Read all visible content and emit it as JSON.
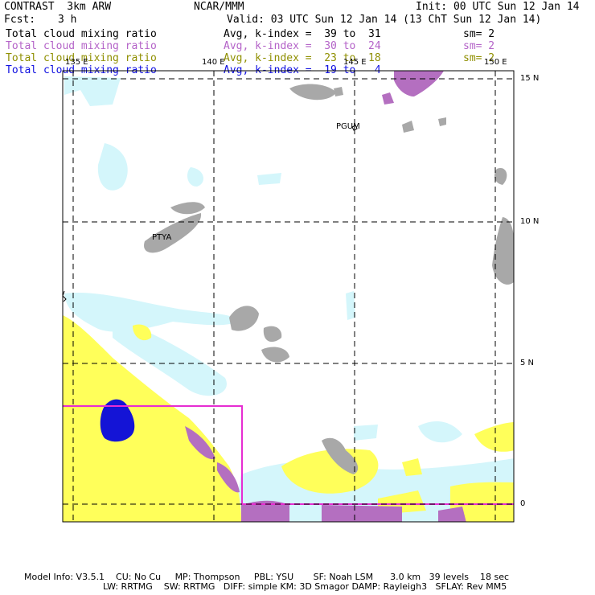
{
  "header": {
    "model_title": "CONTRAST  3km ARW",
    "org": "NCAR/MMM",
    "init": "Init: 00 UTC Sun 12 Jan 14",
    "fcst_label": "Fcst:",
    "fcst_value": "3 h",
    "valid": "Valid: 03 UTC Sun 12 Jan 14 (13 ChT Sun 12 Jan 14)"
  },
  "legend": [
    {
      "field": "Total cloud mixing ratio",
      "stat": "Avg, k-index =  39 to  31",
      "smooth": "sm= 2",
      "color": "#000000"
    },
    {
      "field": "Total cloud mixing ratio",
      "stat": "Avg, k-index =  30 to  24",
      "smooth": "sm= 2",
      "color": "#b463c8"
    },
    {
      "field": "Total cloud mixing ratio",
      "stat": "Avg, k-index =  23 to  18",
      "smooth": "sm= 2",
      "color": "#8f8f00"
    },
    {
      "field": "Total cloud mixing ratio",
      "stat": "Avg, k-index =  19 to   4",
      "smooth": "",
      "color": "#1010e0"
    }
  ],
  "map": {
    "lon_labels": [
      "135 E",
      "140 E",
      "145 E",
      "150 E"
    ],
    "lat_labels": [
      "15 N",
      "10 N",
      "5 N",
      "0"
    ],
    "stations": [
      "PGUM",
      "PTYA"
    ],
    "colors": {
      "gray": "#a8a8a8",
      "purple": "#b46fc0",
      "yellow": "#ffff5a",
      "cyan": "#d4f6fb",
      "blue": "#1414d6",
      "box": "#e62dd2"
    }
  },
  "footer": {
    "line1": "Model Info: V3.5.1    CU: No Cu     MP: Thompson     PBL: YSU       SF: Noah LSM      3.0 km   39 levels    18 sec",
    "line2": "LW: RRTMG    SW: RRTMG   DIFF: simple KM: 3D Smagor DAMP: Rayleigh3   SFLAY: Rev MM5"
  }
}
